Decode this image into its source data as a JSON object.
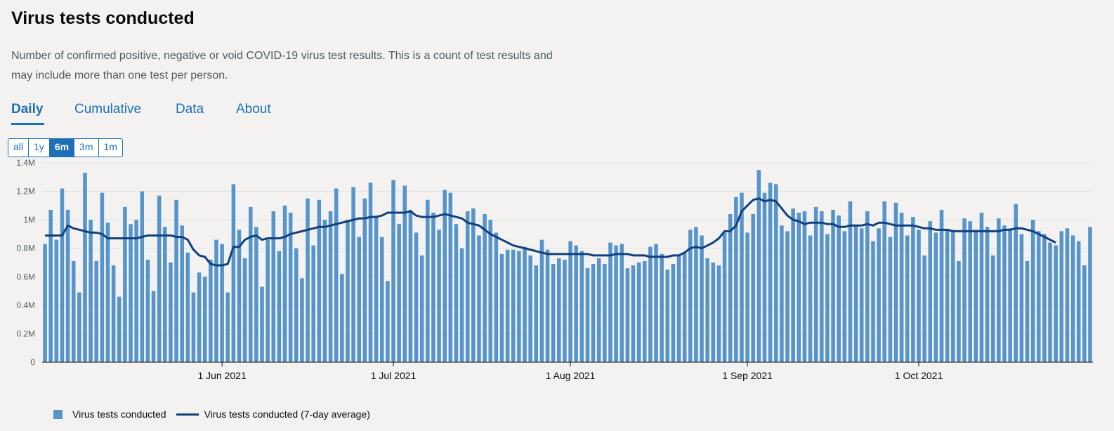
{
  "header": {
    "title": "Virus tests conducted",
    "description": "Number of confirmed positive, negative or void COVID-19 virus test results. This is a count of test results and may include more than one test per person."
  },
  "tabs": [
    {
      "label": "Daily",
      "active": true
    },
    {
      "label": "Cumulative",
      "active": false
    },
    {
      "label": "Data",
      "active": false
    },
    {
      "label": "About",
      "active": false
    }
  ],
  "timespan": {
    "options": [
      "all",
      "1y",
      "6m",
      "3m",
      "1m"
    ],
    "selected": "6m"
  },
  "colors": {
    "bar": "#5694ca",
    "line": "#12407f",
    "accent": "#1d70b8",
    "background": "#f3f2f1"
  },
  "legend": [
    {
      "label": "Virus tests conducted",
      "kind": "bar"
    },
    {
      "label": "Virus tests conducted (7-day average)",
      "kind": "line"
    }
  ],
  "chart_data": {
    "type": "bar",
    "xlabel": "",
    "ylabel": "",
    "x_start": "2021-05-01",
    "x_end": "2021-10-26",
    "ylim": [
      0,
      1400000
    ],
    "yticks": [
      {
        "value": 0,
        "label": "0"
      },
      {
        "value": 200000,
        "label": "0.2M"
      },
      {
        "value": 400000,
        "label": "0.4M"
      },
      {
        "value": 600000,
        "label": "0.6M"
      },
      {
        "value": 800000,
        "label": "0.8M"
      },
      {
        "value": 1000000,
        "label": "1M"
      },
      {
        "value": 1200000,
        "label": "1.2M"
      },
      {
        "value": 1400000,
        "label": "1.4M"
      }
    ],
    "xticks": [
      {
        "date": "2021-06-01",
        "label": "1 Jun 2021"
      },
      {
        "date": "2021-07-01",
        "label": "1 Jul 2021"
      },
      {
        "date": "2021-08-01",
        "label": "1 Aug 2021"
      },
      {
        "date": "2021-09-01",
        "label": "1 Sep 2021"
      },
      {
        "date": "2021-10-01",
        "label": "1 Oct 2021"
      }
    ],
    "grid": true,
    "series": [
      {
        "name": "Virus tests conducted",
        "type": "bar",
        "values": [
          830000,
          1070000,
          860000,
          1220000,
          1070000,
          710000,
          490000,
          1330000,
          1000000,
          710000,
          1190000,
          980000,
          680000,
          460000,
          1090000,
          970000,
          1000000,
          1200000,
          720000,
          500000,
          1170000,
          950000,
          700000,
          1140000,
          960000,
          770000,
          490000,
          630000,
          600000,
          720000,
          860000,
          830000,
          490000,
          1250000,
          930000,
          730000,
          1090000,
          950000,
          530000,
          860000,
          1060000,
          780000,
          1100000,
          1050000,
          800000,
          590000,
          1150000,
          820000,
          1140000,
          1000000,
          1060000,
          1220000,
          620000,
          1000000,
          1230000,
          880000,
          1150000,
          1260000,
          1030000,
          880000,
          570000,
          1280000,
          970000,
          1240000,
          1070000,
          910000,
          750000,
          1140000,
          1050000,
          930000,
          1210000,
          1190000,
          970000,
          800000,
          1060000,
          1080000,
          890000,
          1040000,
          1000000,
          910000,
          760000,
          790000,
          790000,
          780000,
          810000,
          750000,
          680000,
          860000,
          790000,
          690000,
          730000,
          720000,
          850000,
          820000,
          780000,
          660000,
          690000,
          730000,
          690000,
          840000,
          820000,
          830000,
          660000,
          680000,
          700000,
          710000,
          810000,
          830000,
          760000,
          650000,
          690000,
          750000,
          770000,
          930000,
          950000,
          890000,
          730000,
          700000,
          680000,
          910000,
          1040000,
          1160000,
          1190000,
          910000,
          1040000,
          1350000,
          1190000,
          1260000,
          1250000,
          960000,
          920000,
          1080000,
          1050000,
          1060000,
          890000,
          1090000,
          1060000,
          900000,
          1070000,
          1030000,
          920000,
          1130000,
          960000,
          940000,
          1060000,
          850000,
          940000,
          1130000,
          880000,
          1120000,
          1050000,
          890000,
          1020000,
          930000,
          750000,
          990000,
          910000,
          1070000,
          930000,
          930000,
          710000,
          1010000,
          990000,
          930000,
          1050000,
          950000,
          750000,
          1010000,
          960000,
          940000,
          1110000,
          900000,
          710000,
          1000000,
          920000,
          900000,
          840000,
          820000,
          920000,
          940000,
          890000,
          850000,
          680000,
          950000
        ]
      },
      {
        "name": "Virus tests conducted (7-day average)",
        "type": "line",
        "values": [
          890000,
          890000,
          890000,
          890000,
          960000,
          940000,
          930000,
          920000,
          910000,
          910000,
          900000,
          870000,
          870000,
          870000,
          870000,
          870000,
          870000,
          880000,
          890000,
          890000,
          890000,
          890000,
          890000,
          880000,
          880000,
          860000,
          790000,
          750000,
          740000,
          690000,
          680000,
          680000,
          690000,
          810000,
          810000,
          860000,
          880000,
          890000,
          860000,
          870000,
          870000,
          870000,
          880000,
          900000,
          910000,
          920000,
          930000,
          940000,
          950000,
          950000,
          960000,
          970000,
          980000,
          990000,
          1000000,
          1010000,
          1010000,
          1020000,
          1020000,
          1030000,
          1050000,
          1050000,
          1050000,
          1050000,
          1060000,
          1030000,
          1020000,
          1020000,
          1020000,
          1030000,
          1040000,
          1030000,
          1020000,
          1010000,
          980000,
          970000,
          960000,
          930000,
          900000,
          880000,
          860000,
          840000,
          820000,
          810000,
          800000,
          790000,
          780000,
          770000,
          760000,
          760000,
          760000,
          760000,
          760000,
          760000,
          760000,
          760000,
          750000,
          750000,
          750000,
          750000,
          760000,
          760000,
          760000,
          750000,
          750000,
          750000,
          740000,
          740000,
          740000,
          740000,
          750000,
          750000,
          770000,
          800000,
          810000,
          800000,
          820000,
          840000,
          870000,
          920000,
          920000,
          960000,
          1060000,
          1100000,
          1140000,
          1150000,
          1130000,
          1140000,
          1130000,
          1080000,
          1030000,
          1000000,
          990000,
          970000,
          980000,
          980000,
          980000,
          970000,
          970000,
          950000,
          950000,
          960000,
          960000,
          960000,
          970000,
          960000,
          980000,
          980000,
          970000,
          960000,
          960000,
          960000,
          960000,
          950000,
          940000,
          940000,
          930000,
          930000,
          930000,
          920000,
          920000,
          920000,
          920000,
          920000,
          920000,
          920000,
          920000,
          920000,
          930000,
          930000,
          940000,
          940000,
          930000,
          920000,
          900000,
          880000,
          860000,
          840000
        ]
      }
    ]
  }
}
